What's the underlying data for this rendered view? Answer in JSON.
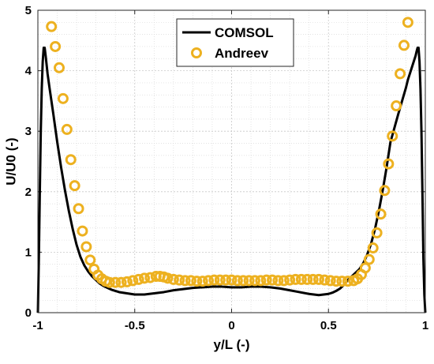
{
  "chart_data": {
    "type": "line",
    "title": "",
    "xlabel": "y/L (-)",
    "ylabel": "U/U0 (-)",
    "xlim": [
      -1,
      1
    ],
    "ylim": [
      0,
      5
    ],
    "xticks": [
      -1,
      -0.5,
      0,
      0.5,
      1
    ],
    "xtick_labels": [
      "-1",
      "-0.5",
      "0",
      "0.5",
      "1"
    ],
    "yticks": [
      0,
      1,
      2,
      3,
      4,
      5
    ],
    "ytick_labels": [
      "0",
      "1",
      "2",
      "3",
      "4",
      "5"
    ],
    "grid": true,
    "legend_position": "top-center",
    "series": [
      {
        "name": "COMSOL",
        "kind": "line",
        "color": "#000000",
        "x": [
          -1.0,
          -0.995,
          -0.99,
          -0.985,
          -0.98,
          -0.975,
          -0.97,
          -0.965,
          -0.96,
          -0.955,
          -0.95,
          -0.94,
          -0.93,
          -0.92,
          -0.91,
          -0.9,
          -0.88,
          -0.86,
          -0.84,
          -0.82,
          -0.8,
          -0.78,
          -0.76,
          -0.74,
          -0.72,
          -0.7,
          -0.68,
          -0.66,
          -0.64,
          -0.62,
          -0.6,
          -0.58,
          -0.56,
          -0.54,
          -0.52,
          -0.5,
          -0.45,
          -0.4,
          -0.35,
          -0.3,
          -0.25,
          -0.2,
          -0.15,
          -0.1,
          -0.05,
          0.0,
          0.05,
          0.1,
          0.15,
          0.2,
          0.25,
          0.3,
          0.35,
          0.4,
          0.45,
          0.5,
          0.52,
          0.54,
          0.56,
          0.58,
          0.6,
          0.62,
          0.64,
          0.66,
          0.68,
          0.7,
          0.72,
          0.74,
          0.76,
          0.78,
          0.8,
          0.82,
          0.84,
          0.86,
          0.88,
          0.9,
          0.91,
          0.92,
          0.93,
          0.94,
          0.95,
          0.955,
          0.96,
          0.965,
          0.97,
          0.975,
          0.98,
          0.985,
          0.99,
          0.995,
          1.0
        ],
        "y": [
          0.0,
          0.9,
          2.0,
          3.0,
          3.7,
          4.15,
          4.38,
          4.38,
          4.25,
          4.1,
          3.95,
          3.72,
          3.5,
          3.28,
          3.05,
          2.82,
          2.4,
          2.02,
          1.68,
          1.38,
          1.12,
          0.92,
          0.78,
          0.68,
          0.6,
          0.54,
          0.48,
          0.44,
          0.41,
          0.38,
          0.36,
          0.34,
          0.33,
          0.32,
          0.31,
          0.3,
          0.3,
          0.32,
          0.34,
          0.37,
          0.39,
          0.41,
          0.42,
          0.43,
          0.43,
          0.42,
          0.42,
          0.43,
          0.43,
          0.42,
          0.4,
          0.37,
          0.34,
          0.31,
          0.29,
          0.31,
          0.33,
          0.36,
          0.4,
          0.46,
          0.54,
          0.6,
          0.66,
          0.72,
          0.82,
          0.96,
          1.14,
          1.38,
          1.68,
          2.02,
          2.4,
          2.82,
          3.05,
          3.28,
          3.5,
          3.72,
          3.85,
          3.95,
          4.05,
          4.15,
          4.25,
          4.32,
          4.38,
          4.38,
          4.15,
          3.7,
          3.0,
          2.0,
          0.9,
          0.3,
          0.0
        ]
      },
      {
        "name": "Andreev",
        "kind": "markers",
        "color": "#EDB120",
        "x": [
          -0.93,
          -0.91,
          -0.89,
          -0.87,
          -0.85,
          -0.83,
          -0.81,
          -0.79,
          -0.77,
          -0.75,
          -0.73,
          -0.71,
          -0.69,
          -0.67,
          -0.65,
          -0.63,
          -0.6,
          -0.57,
          -0.54,
          -0.51,
          -0.48,
          -0.45,
          -0.42,
          -0.39,
          -0.37,
          -0.35,
          -0.33,
          -0.3,
          -0.27,
          -0.24,
          -0.21,
          -0.18,
          -0.15,
          -0.12,
          -0.09,
          -0.06,
          -0.03,
          0.0,
          0.03,
          0.06,
          0.09,
          0.12,
          0.15,
          0.18,
          0.21,
          0.24,
          0.27,
          0.3,
          0.33,
          0.36,
          0.39,
          0.42,
          0.45,
          0.48,
          0.51,
          0.54,
          0.57,
          0.6,
          0.63,
          0.65,
          0.67,
          0.69,
          0.71,
          0.73,
          0.75,
          0.77,
          0.79,
          0.81,
          0.83,
          0.85,
          0.87,
          0.89,
          0.91
        ],
        "y": [
          4.73,
          4.4,
          4.05,
          3.54,
          3.03,
          2.53,
          2.1,
          1.72,
          1.35,
          1.09,
          0.87,
          0.72,
          0.62,
          0.56,
          0.52,
          0.5,
          0.5,
          0.5,
          0.51,
          0.53,
          0.55,
          0.57,
          0.58,
          0.6,
          0.6,
          0.59,
          0.57,
          0.55,
          0.54,
          0.53,
          0.53,
          0.52,
          0.52,
          0.53,
          0.54,
          0.54,
          0.54,
          0.54,
          0.53,
          0.53,
          0.53,
          0.53,
          0.53,
          0.54,
          0.54,
          0.53,
          0.53,
          0.54,
          0.55,
          0.55,
          0.55,
          0.55,
          0.55,
          0.54,
          0.53,
          0.52,
          0.52,
          0.52,
          0.53,
          0.56,
          0.63,
          0.74,
          0.88,
          1.07,
          1.32,
          1.63,
          2.02,
          2.46,
          2.92,
          3.42,
          3.95,
          4.42,
          4.8
        ]
      }
    ]
  }
}
